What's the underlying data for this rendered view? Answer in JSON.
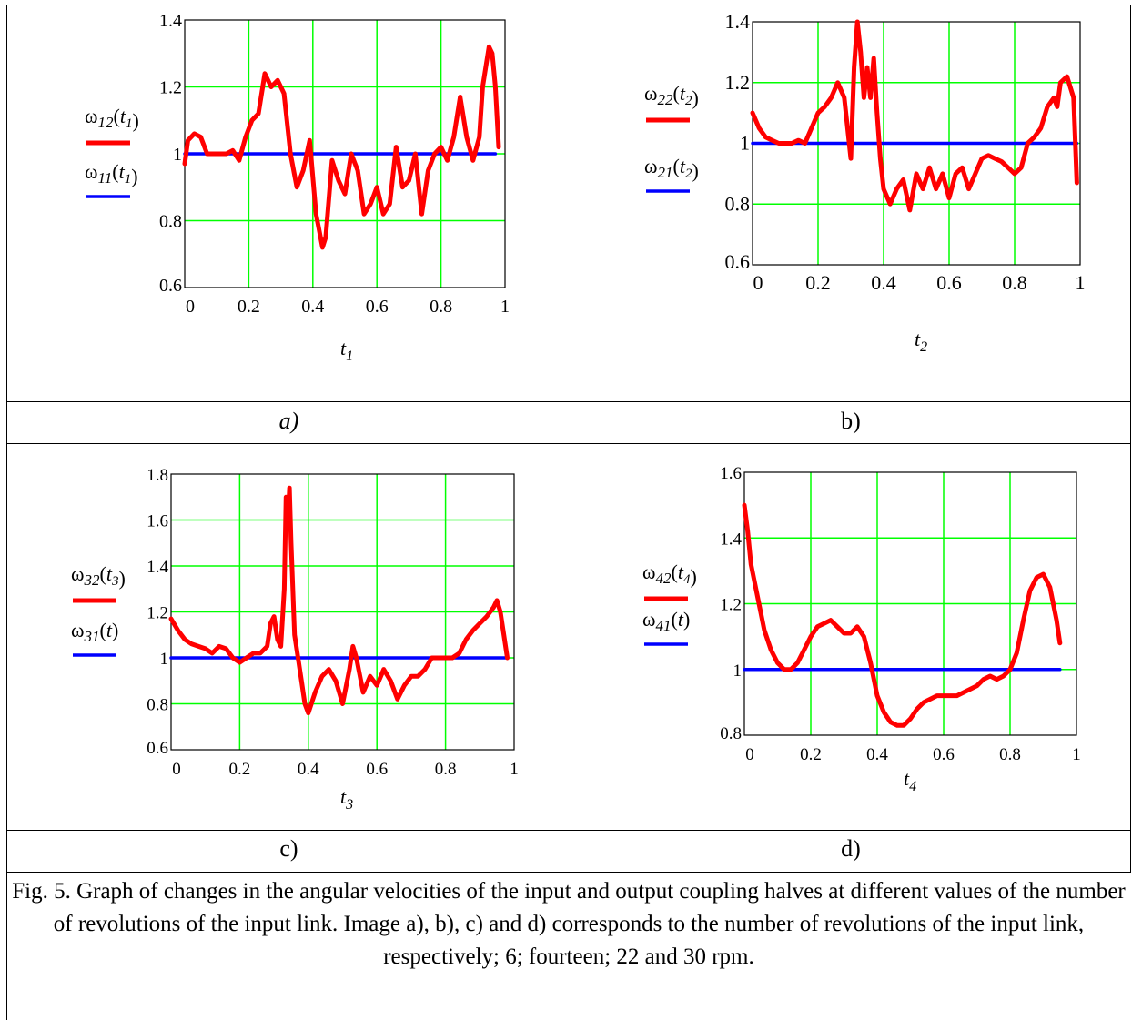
{
  "charts": [
    {
      "panel_label": "a)",
      "legend": {
        "red": "ω12(t1)",
        "red_main": "ω",
        "red_sub": "12",
        "red_arg": "t1",
        "blue": "ω11(t1)",
        "blue_main": "ω",
        "blue_sub": "11",
        "blue_arg": "t1"
      },
      "xlabel_main": "t",
      "xlabel_sub": "1"
    },
    {
      "panel_label": "b)",
      "legend": {
        "red": "ω22(t2)",
        "red_main": "ω",
        "red_sub": "22",
        "red_arg": "t2",
        "blue": "ω21(t2)",
        "blue_main": "ω",
        "blue_sub": "21",
        "blue_arg": "t2"
      },
      "xlabel_main": "t",
      "xlabel_sub": "2"
    },
    {
      "panel_label": "c)",
      "legend": {
        "red": "ω32(t3)",
        "red_main": "ω",
        "red_sub": "32",
        "red_arg": "t3",
        "blue": "ω31(t)",
        "blue_main": "ω",
        "blue_sub": "31",
        "blue_arg": "t"
      },
      "xlabel_main": "t",
      "xlabel_sub": "3"
    },
    {
      "panel_label": "d)",
      "legend": {
        "red": "ω42(t4)",
        "red_main": "ω",
        "red_sub": "42",
        "red_arg": "t4",
        "blue": "ω41(t)",
        "blue_main": "ω",
        "blue_sub": "41",
        "blue_arg": "t"
      },
      "xlabel_main": "t",
      "xlabel_sub": "4"
    }
  ],
  "caption": "Fig. 5. Graph of changes in the angular velocities of the input and output coupling halves at different values of the number of revolutions of the input link. Image a), b), c) and d) corresponds to the number of revolutions of the input link, respectively; 6; fourteen; 22 and 30 rpm.",
  "colors": {
    "red_series": "#ff0000",
    "blue_series": "#0000ff",
    "grid": "#00ff00"
  },
  "chart_data": [
    {
      "type": "line",
      "xlim": [
        0,
        1
      ],
      "ylim": [
        0.6,
        1.4
      ],
      "xticks": [
        "0",
        "0.2",
        "0.4",
        "0.6",
        "0.8",
        "1"
      ],
      "yticks": [
        "0.6",
        "0.8",
        "1",
        "1.2",
        "1.4"
      ],
      "grid": true,
      "series": [
        {
          "name": "ω12(t1)",
          "color": "#ff0000",
          "x": [
            0,
            0.01,
            0.03,
            0.05,
            0.07,
            0.09,
            0.11,
            0.13,
            0.15,
            0.17,
            0.19,
            0.21,
            0.23,
            0.25,
            0.27,
            0.29,
            0.31,
            0.33,
            0.35,
            0.37,
            0.39,
            0.41,
            0.43,
            0.44,
            0.46,
            0.48,
            0.5,
            0.52,
            0.54,
            0.56,
            0.58,
            0.6,
            0.62,
            0.64,
            0.66,
            0.68,
            0.7,
            0.72,
            0.74,
            0.76,
            0.78,
            0.8,
            0.82,
            0.84,
            0.86,
            0.88,
            0.9,
            0.92,
            0.93,
            0.95,
            0.96,
            0.97,
            0.98
          ],
          "y": [
            0.97,
            1.04,
            1.06,
            1.05,
            1.0,
            1.0,
            1.0,
            1.0,
            1.01,
            0.98,
            1.05,
            1.1,
            1.12,
            1.24,
            1.2,
            1.22,
            1.18,
            1.0,
            0.9,
            0.95,
            1.04,
            0.82,
            0.72,
            0.75,
            0.98,
            0.92,
            0.88,
            1.0,
            0.95,
            0.82,
            0.85,
            0.9,
            0.82,
            0.85,
            1.02,
            0.9,
            0.92,
            1.0,
            0.82,
            0.95,
            1.0,
            1.02,
            0.98,
            1.05,
            1.17,
            1.05,
            0.98,
            1.05,
            1.2,
            1.32,
            1.3,
            1.2,
            1.02
          ]
        },
        {
          "name": "ω11(t1)",
          "color": "#0000ff",
          "x": [
            0,
            0.97
          ],
          "y": [
            1,
            1
          ]
        }
      ]
    },
    {
      "type": "line",
      "xlim": [
        0,
        1
      ],
      "ylim": [
        0.6,
        1.4
      ],
      "xticks": [
        "0",
        "0.2",
        "0.4",
        "0.6",
        "0.8",
        "1"
      ],
      "yticks": [
        "0.6",
        "0.8",
        "1",
        "1.2",
        "1.4"
      ],
      "grid": true,
      "series": [
        {
          "name": "ω22(t2)",
          "color": "#ff0000",
          "x": [
            0,
            0.02,
            0.04,
            0.06,
            0.08,
            0.1,
            0.12,
            0.14,
            0.16,
            0.18,
            0.2,
            0.22,
            0.24,
            0.26,
            0.28,
            0.29,
            0.3,
            0.31,
            0.32,
            0.33,
            0.34,
            0.35,
            0.36,
            0.37,
            0.38,
            0.39,
            0.4,
            0.42,
            0.44,
            0.46,
            0.48,
            0.5,
            0.52,
            0.54,
            0.56,
            0.58,
            0.6,
            0.62,
            0.64,
            0.66,
            0.68,
            0.7,
            0.72,
            0.74,
            0.76,
            0.78,
            0.8,
            0.82,
            0.84,
            0.86,
            0.88,
            0.9,
            0.92,
            0.93,
            0.94,
            0.96,
            0.98,
            0.99
          ],
          "y": [
            1.1,
            1.05,
            1.02,
            1.01,
            1.0,
            1.0,
            1.0,
            1.01,
            1.0,
            1.05,
            1.1,
            1.12,
            1.15,
            1.2,
            1.15,
            1.05,
            0.95,
            1.25,
            1.4,
            1.3,
            1.15,
            1.25,
            1.15,
            1.28,
            1.1,
            0.95,
            0.85,
            0.8,
            0.85,
            0.88,
            0.78,
            0.9,
            0.85,
            0.92,
            0.85,
            0.9,
            0.82,
            0.9,
            0.92,
            0.85,
            0.9,
            0.95,
            0.96,
            0.95,
            0.94,
            0.92,
            0.9,
            0.92,
            1.0,
            1.02,
            1.05,
            1.12,
            1.15,
            1.12,
            1.2,
            1.22,
            1.15,
            0.87
          ]
        },
        {
          "name": "ω21(t2)",
          "color": "#0000ff",
          "x": [
            0,
            0.99
          ],
          "y": [
            1,
            1
          ]
        }
      ]
    },
    {
      "type": "line",
      "xlim": [
        0,
        1
      ],
      "ylim": [
        0.6,
        1.8
      ],
      "xticks": [
        "0",
        "0.2",
        "0.4",
        "0.6",
        "0.8",
        "1"
      ],
      "yticks": [
        "0.6",
        "0.8",
        "1",
        "1.2",
        "1.4",
        "1.6",
        "1.8"
      ],
      "grid": true,
      "series": [
        {
          "name": "ω32(t3)",
          "color": "#ff0000",
          "x": [
            0,
            0.02,
            0.04,
            0.06,
            0.08,
            0.1,
            0.12,
            0.14,
            0.16,
            0.18,
            0.2,
            0.22,
            0.24,
            0.26,
            0.28,
            0.29,
            0.3,
            0.31,
            0.32,
            0.33,
            0.335,
            0.34,
            0.345,
            0.35,
            0.36,
            0.37,
            0.38,
            0.39,
            0.4,
            0.42,
            0.44,
            0.46,
            0.48,
            0.5,
            0.52,
            0.53,
            0.54,
            0.56,
            0.58,
            0.6,
            0.62,
            0.64,
            0.66,
            0.68,
            0.7,
            0.72,
            0.74,
            0.76,
            0.78,
            0.8,
            0.82,
            0.84,
            0.86,
            0.88,
            0.9,
            0.92,
            0.94,
            0.95,
            0.96,
            0.97,
            0.98
          ],
          "y": [
            1.17,
            1.12,
            1.08,
            1.06,
            1.05,
            1.04,
            1.02,
            1.05,
            1.04,
            1.0,
            0.98,
            1.0,
            1.02,
            1.02,
            1.05,
            1.15,
            1.18,
            1.08,
            1.05,
            1.3,
            1.7,
            1.58,
            1.74,
            1.5,
            1.1,
            1.0,
            0.9,
            0.8,
            0.76,
            0.85,
            0.92,
            0.95,
            0.9,
            0.8,
            0.95,
            1.05,
            1.0,
            0.85,
            0.92,
            0.88,
            0.95,
            0.9,
            0.82,
            0.88,
            0.92,
            0.92,
            0.95,
            1.0,
            1.0,
            1.0,
            1.0,
            1.02,
            1.08,
            1.12,
            1.15,
            1.18,
            1.22,
            1.25,
            1.2,
            1.1,
            1.0
          ]
        },
        {
          "name": "ω31(t)",
          "color": "#0000ff",
          "x": [
            0,
            0.98
          ],
          "y": [
            1,
            1
          ]
        }
      ]
    },
    {
      "type": "line",
      "xlim": [
        0,
        1
      ],
      "ylim": [
        0.8,
        1.6
      ],
      "xticks": [
        "0",
        "0.2",
        "0.4",
        "0.6",
        "0.8",
        "1"
      ],
      "yticks": [
        "0.8",
        "1",
        "1.2",
        "1.4",
        "1.6"
      ],
      "grid": true,
      "series": [
        {
          "name": "ω42(t4)",
          "color": "#ff0000",
          "x": [
            0,
            0.01,
            0.02,
            0.04,
            0.06,
            0.08,
            0.1,
            0.12,
            0.14,
            0.16,
            0.18,
            0.2,
            0.22,
            0.24,
            0.26,
            0.28,
            0.3,
            0.32,
            0.34,
            0.36,
            0.38,
            0.4,
            0.42,
            0.44,
            0.46,
            0.48,
            0.5,
            0.52,
            0.54,
            0.56,
            0.58,
            0.6,
            0.62,
            0.64,
            0.66,
            0.68,
            0.7,
            0.72,
            0.74,
            0.76,
            0.78,
            0.8,
            0.82,
            0.84,
            0.86,
            0.88,
            0.9,
            0.92,
            0.94,
            0.95
          ],
          "y": [
            1.5,
            1.42,
            1.32,
            1.22,
            1.12,
            1.06,
            1.02,
            1.0,
            1.0,
            1.02,
            1.06,
            1.1,
            1.13,
            1.14,
            1.15,
            1.13,
            1.11,
            1.11,
            1.13,
            1.1,
            1.02,
            0.92,
            0.87,
            0.84,
            0.83,
            0.83,
            0.85,
            0.88,
            0.9,
            0.91,
            0.92,
            0.92,
            0.92,
            0.92,
            0.93,
            0.94,
            0.95,
            0.97,
            0.98,
            0.97,
            0.98,
            1.0,
            1.05,
            1.15,
            1.24,
            1.28,
            1.29,
            1.25,
            1.15,
            1.08
          ]
        },
        {
          "name": "ω41(t)",
          "color": "#0000ff",
          "x": [
            0,
            0.95
          ],
          "y": [
            1,
            1
          ]
        }
      ]
    }
  ]
}
